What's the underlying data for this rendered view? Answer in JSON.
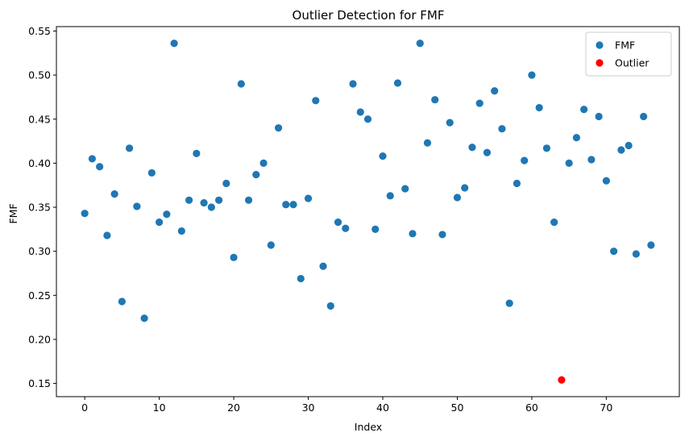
{
  "chart_data": {
    "type": "scatter",
    "title": "Outlier Detection for FMF",
    "xlabel": "Index",
    "ylabel": "FMF",
    "xlim": [
      -3.8,
      79.8
    ],
    "ylim": [
      0.135,
      0.555
    ],
    "xticks": [
      0,
      10,
      20,
      30,
      40,
      50,
      60,
      70
    ],
    "yticks": [
      0.15,
      0.2,
      0.25,
      0.3,
      0.35,
      0.4,
      0.45,
      0.5,
      0.55
    ],
    "ytick_labels": [
      "0.15",
      "0.20",
      "0.25",
      "0.30",
      "0.35",
      "0.40",
      "0.45",
      "0.50",
      "0.55"
    ],
    "grid": false,
    "legend_position": "top-right",
    "series": [
      {
        "name": "FMF",
        "color": "#1f77b4",
        "x": [
          0,
          1,
          2,
          3,
          4,
          5,
          6,
          7,
          8,
          9,
          10,
          11,
          12,
          13,
          14,
          15,
          16,
          17,
          18,
          19,
          20,
          21,
          22,
          23,
          24,
          25,
          26,
          27,
          28,
          29,
          30,
          31,
          32,
          33,
          34,
          35,
          36,
          37,
          38,
          39,
          40,
          41,
          42,
          43,
          44,
          45,
          46,
          47,
          48,
          49,
          50,
          51,
          52,
          53,
          54,
          55,
          56,
          57,
          58,
          59,
          60,
          61,
          62,
          63,
          65,
          66,
          67,
          68,
          69,
          70,
          71,
          72,
          73,
          74,
          75,
          76
        ],
        "y": [
          0.343,
          0.405,
          0.396,
          0.318,
          0.365,
          0.243,
          0.417,
          0.351,
          0.224,
          0.389,
          0.333,
          0.342,
          0.536,
          0.323,
          0.358,
          0.411,
          0.355,
          0.35,
          0.358,
          0.377,
          0.293,
          0.49,
          0.358,
          0.387,
          0.4,
          0.307,
          0.44,
          0.353,
          0.353,
          0.269,
          0.36,
          0.471,
          0.283,
          0.238,
          0.333,
          0.326,
          0.49,
          0.458,
          0.45,
          0.325,
          0.408,
          0.363,
          0.491,
          0.371,
          0.32,
          0.536,
          0.423,
          0.472,
          0.319,
          0.446,
          0.361,
          0.372,
          0.418,
          0.468,
          0.412,
          0.482,
          0.439,
          0.241,
          0.377,
          0.403,
          0.5,
          0.463,
          0.417,
          0.333,
          0.4,
          0.429,
          0.461,
          0.404,
          0.453,
          0.38,
          0.3,
          0.415,
          0.42,
          0.297,
          0.453,
          0.307
        ]
      },
      {
        "name": "Outlier",
        "color": "#ff0000",
        "x": [
          64
        ],
        "y": [
          0.154
        ]
      }
    ]
  }
}
